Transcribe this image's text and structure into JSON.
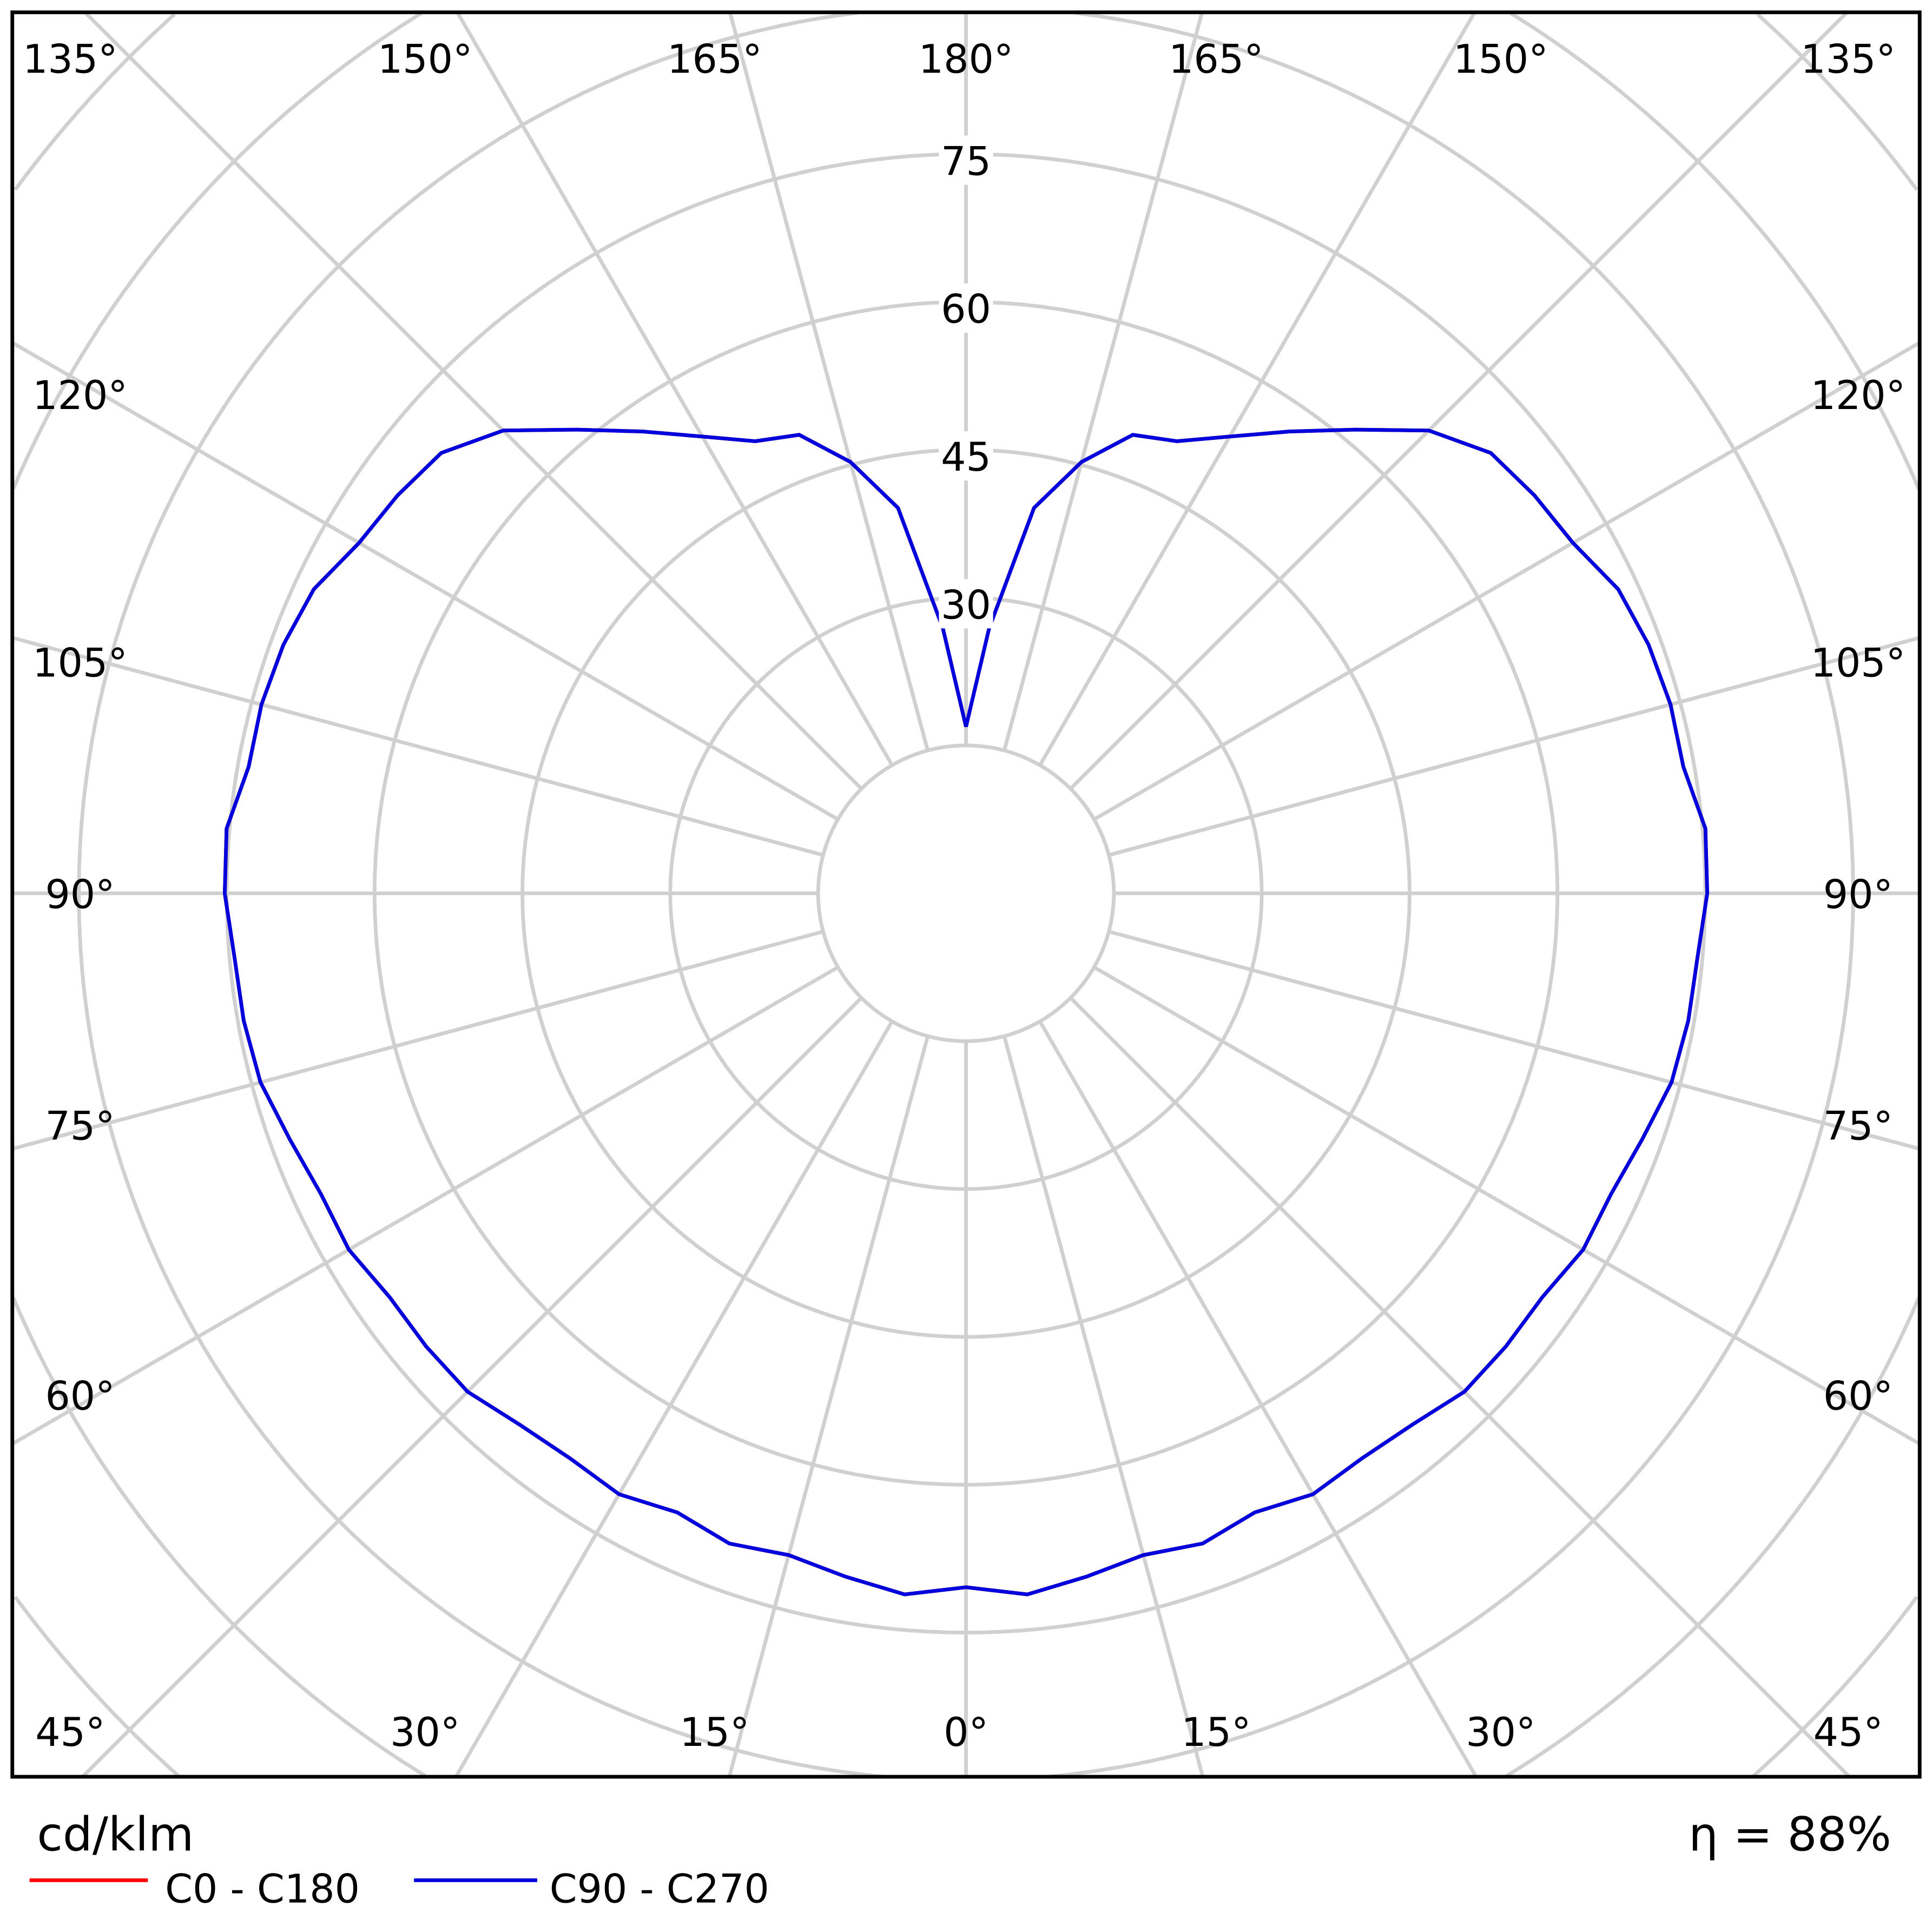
{
  "chart_data": {
    "type": "polar",
    "unit_label": "cd/klm",
    "efficiency_label": "η = 88%",
    "radial_ticks": [
      30,
      45,
      60,
      75
    ],
    "radial_range": [
      0,
      90
    ],
    "angle_labels": {
      "top": [
        "135°",
        "150°",
        "165°",
        "180°",
        "165°",
        "150°",
        "135°"
      ],
      "left": [
        "120°",
        "105°",
        "90°",
        "75°",
        "60°"
      ],
      "right": [
        "120°",
        "105°",
        "90°",
        "75°",
        "60°"
      ],
      "bottom": [
        "45°",
        "30°",
        "15°",
        "0°",
        "15°",
        "30°",
        "45°"
      ]
    },
    "grid": true,
    "legend_position": "bottom-left",
    "angles": [
      0,
      5,
      10,
      15,
      20,
      25,
      30,
      35,
      40,
      45,
      50,
      55,
      60,
      65,
      70,
      75,
      80,
      85,
      90,
      95,
      100,
      105,
      110,
      115,
      120,
      125,
      130,
      135,
      140,
      145,
      150,
      155,
      160,
      165,
      170,
      175,
      180
    ],
    "series": [
      {
        "name": "C0 - C180",
        "color": "#ff0000",
        "values": [
          70.4,
          71.4,
          70.4,
          69.5,
          70.2,
          69.3,
          70.4,
          70.0,
          70.4,
          71.5,
          71.5,
          71.4,
          72.3,
          72.2,
          73.0,
          74.1,
          74.4,
          74.5,
          75.2,
          75.3,
          73.9,
          74.0,
          73.7,
          73.0,
          71.1,
          70.4,
          69.5,
          66.4,
          61.4,
          57.2,
          53.5,
          50.6,
          49.5,
          45.3,
          39.7,
          27.0,
          16.9
        ]
      },
      {
        "name": "C90 - C270",
        "color": "#0000dd",
        "values": [
          70.4,
          71.4,
          70.4,
          69.5,
          70.2,
          69.3,
          70.4,
          70.0,
          70.4,
          71.5,
          71.5,
          71.4,
          72.3,
          72.2,
          73.0,
          74.1,
          74.4,
          74.5,
          75.2,
          75.3,
          73.9,
          74.0,
          73.7,
          73.0,
          71.1,
          70.4,
          69.5,
          66.4,
          61.4,
          57.2,
          53.5,
          50.6,
          49.5,
          45.3,
          39.7,
          27.0,
          16.9
        ]
      }
    ]
  }
}
